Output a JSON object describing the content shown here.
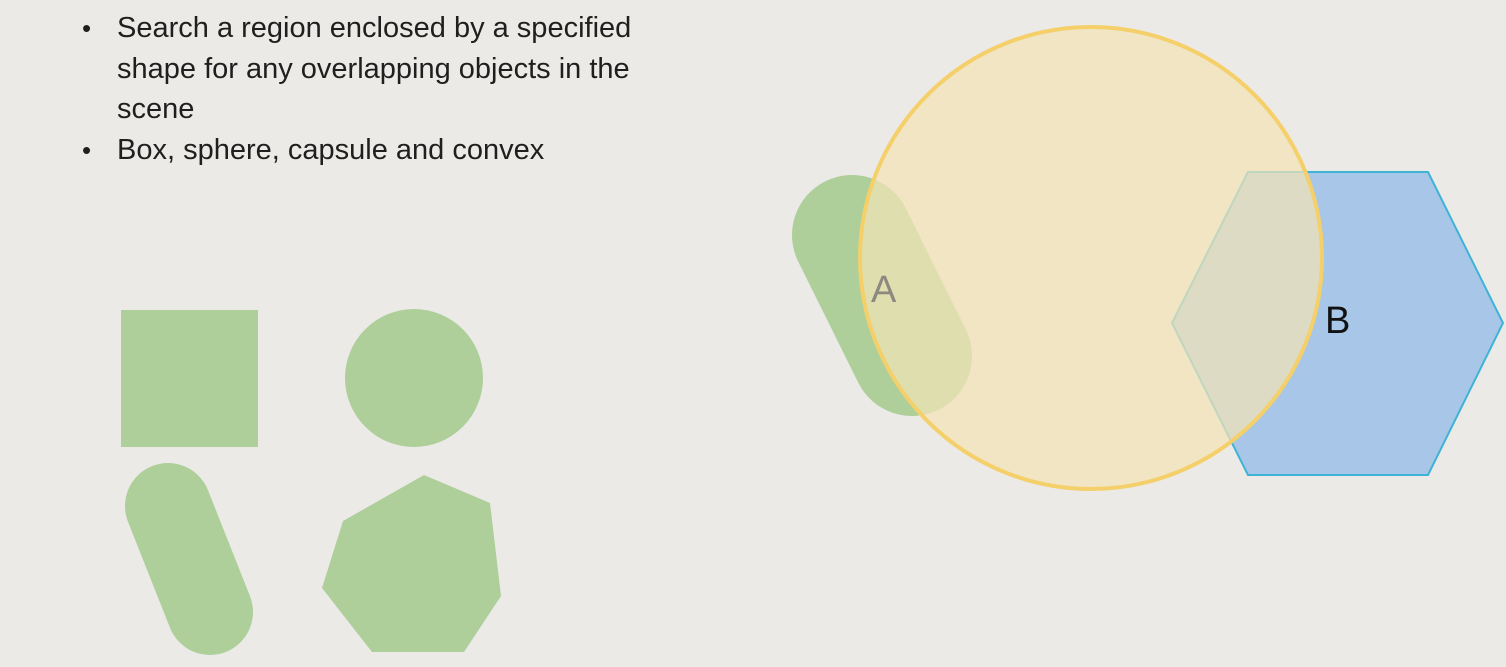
{
  "bullets": [
    "Search a region enclosed by a specified shape for any overlapping objects in the scene",
    "Box, sphere, capsule and convex"
  ],
  "labels": {
    "a": "A",
    "b": "B"
  },
  "colors": {
    "background": "#ebeae7",
    "shape_green": "#aecf9a",
    "query_circle_fill": "#f2e3b6",
    "query_circle_stroke": "#f4cf6a",
    "hexagon_fill": "#a7c6e8",
    "hexagon_stroke": "#3fb3d6",
    "label_a": "#8c8a80",
    "label_b": "#111111"
  }
}
